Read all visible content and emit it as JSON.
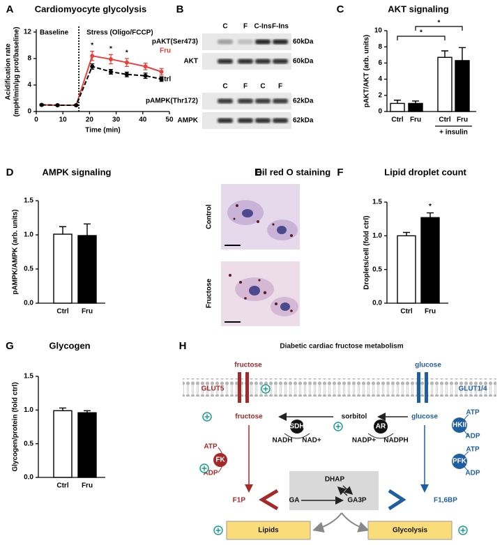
{
  "panel_labels": [
    "A",
    "B",
    "C",
    "D",
    "E",
    "F",
    "G",
    "H"
  ],
  "chart_data": [
    {
      "type": "line",
      "title": "Cardiomyocyte glycolysis",
      "xlabel": "Time (min)",
      "ylabel": [
        "Acidification rate",
        "(mpH/min/µg prot/baseline)"
      ],
      "x": [
        2,
        8,
        15,
        21,
        28,
        34,
        41,
        47
      ],
      "series": [
        {
          "name": "Fru",
          "color": "#e8413c",
          "line_style": "solid",
          "values": [
            1.0,
            0.95,
            0.95,
            8.4,
            7.9,
            7.4,
            6.8,
            6.0
          ],
          "errors": [
            0.1,
            0.1,
            0.1,
            0.7,
            0.7,
            0.6,
            0.5,
            0.5
          ]
        },
        {
          "name": "Ctrl",
          "color": "#000000",
          "line_style": "dashed",
          "values": [
            1.0,
            0.95,
            0.95,
            6.8,
            6.0,
            5.6,
            5.4,
            4.9
          ],
          "errors": [
            0.1,
            0.1,
            0.1,
            0.4,
            0.35,
            0.35,
            0.4,
            0.35
          ]
        }
      ],
      "xlim": [
        0,
        50
      ],
      "xticks": [
        0,
        10,
        20,
        30,
        40,
        50
      ],
      "ylim": [
        0,
        12
      ],
      "yticks": [
        0,
        4,
        8,
        12
      ],
      "phase_labels": [
        "Baseline",
        "Stress (Oligo/FCCP)"
      ],
      "event_x": 16,
      "annotations": [
        {
          "text": "*",
          "x": 21
        },
        {
          "text": "*",
          "x": 28
        },
        {
          "text": "*",
          "x": 34
        }
      ]
    },
    {
      "type": "bar",
      "title": "AKT signaling",
      "ylabel": "pAKT/AKT (arb. units)",
      "categories": [
        "Ctrl",
        "Fru",
        "Ctrl",
        "Fru"
      ],
      "values": [
        1.0,
        1.0,
        6.7,
        6.3
      ],
      "errors": [
        0.4,
        0.3,
        0.8,
        1.6
      ],
      "colors": [
        "#ffffff",
        "#000000",
        "#ffffff",
        "#000000"
      ],
      "ylim": [
        0,
        10
      ],
      "yticks": [
        0,
        2,
        4,
        6,
        8,
        10
      ],
      "group_label": "+ insulin",
      "significance": [
        "*",
        "*"
      ]
    },
    {
      "type": "bar",
      "title": "AMPK signaling",
      "ylabel": "pAMPK/AMPK (arb. units)",
      "categories": [
        "Ctrl",
        "Fru"
      ],
      "values": [
        1.01,
        0.99
      ],
      "errors": [
        0.11,
        0.17
      ],
      "colors": [
        "#ffffff",
        "#000000"
      ],
      "ylim": [
        0,
        1.5
      ],
      "yticks": [
        {
          "value": 0,
          "label": "0.0"
        },
        {
          "value": 0.5,
          "label": "0.5"
        },
        {
          "value": 1,
          "label": "1.0"
        },
        {
          "value": 1.5,
          "label": "1.5"
        }
      ]
    },
    {
      "type": "bar",
      "title": "Lipid droplet count",
      "ylabel": "Droplets/cell (fold ctrl)",
      "categories": [
        "Ctrl",
        "Fru"
      ],
      "values": [
        1.0,
        1.27
      ],
      "errors": [
        0.05,
        0.07
      ],
      "colors": [
        "#ffffff",
        "#000000"
      ],
      "ylim": [
        0,
        1.5
      ],
      "yticks": [
        {
          "value": 0,
          "label": "0.0"
        },
        {
          "value": 0.5,
          "label": "0.5"
        },
        {
          "value": 1,
          "label": "1.0"
        },
        {
          "value": 1.5,
          "label": "1.5"
        }
      ],
      "significance": [
        "*"
      ]
    },
    {
      "type": "bar",
      "title": "Glycogen",
      "ylabel": "Glycogen/protein (fold ctrl)",
      "categories": [
        "Ctrl",
        "Fru"
      ],
      "values": [
        0.99,
        0.96
      ],
      "errors": [
        0.04,
        0.03
      ],
      "colors": [
        "#ffffff",
        "#000000"
      ],
      "ylim": [
        0,
        1.5
      ],
      "yticks": [
        {
          "value": 0,
          "label": "0.0"
        },
        {
          "value": 0.5,
          "label": "0.5"
        },
        {
          "value": 1,
          "label": "1.0"
        },
        {
          "value": 1.5,
          "label": "1.5"
        }
      ]
    }
  ],
  "blot": {
    "lanes_top": [
      "C",
      "F",
      "C-Ins",
      "F-Ins"
    ],
    "rows_top": [
      {
        "label": "pAKT(Ser473)",
        "size": "60kDa"
      },
      {
        "label": "AKT",
        "size": "60kDa"
      }
    ],
    "lanes_bottom": [
      "C",
      "F",
      "C",
      "F"
    ],
    "rows_bottom": [
      {
        "label": "pAMPK(Thr172)",
        "size": "62kDa"
      },
      {
        "label": "AMPK",
        "size": "62kDa"
      }
    ]
  },
  "staining": {
    "title": "Oil red O staining",
    "conditions": [
      "Control",
      "Fructose"
    ]
  },
  "diagram": {
    "labels": [
      "Diabetic cardiac fructose metabolism",
      "fructose",
      "glucose",
      "GLUT5",
      "GLUT1/4",
      "fructose",
      "sorbitol",
      "glucose",
      "SDH",
      "NADH",
      "NAD+",
      "AR",
      "NADP+",
      "NADPH",
      "HKII",
      "ATP",
      "ADP",
      "PFK",
      "ATP",
      "ADP",
      "FK",
      "ATP",
      "ADP",
      "F1P",
      "DHAP",
      "GA",
      "GA3P",
      "F1,6BP",
      "Lipids",
      "Glycolysis"
    ]
  }
}
